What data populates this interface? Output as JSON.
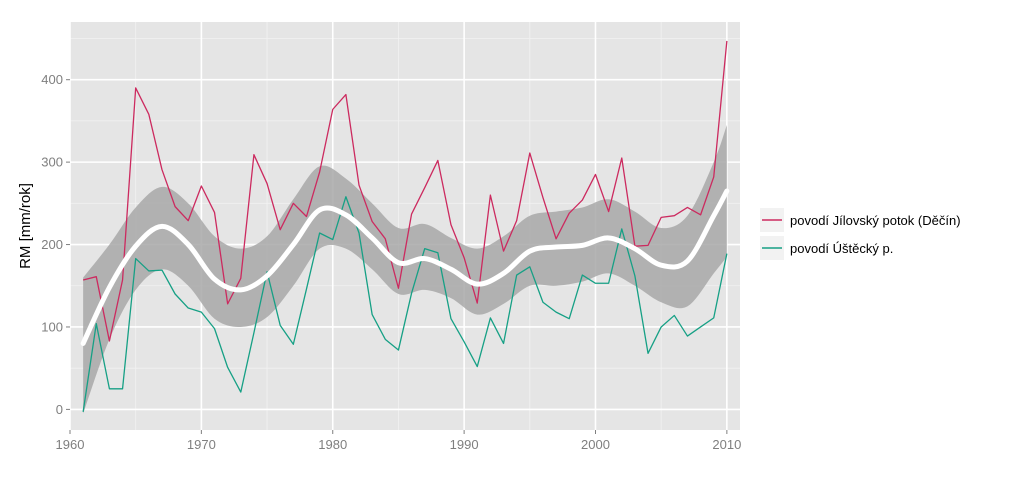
{
  "chart_data": {
    "type": "line",
    "xlabel": "",
    "ylabel": "RM [mm/rok]",
    "xlim": [
      1960,
      2011
    ],
    "ylim": [
      -25,
      470
    ],
    "x_ticks": [
      1960,
      1970,
      1980,
      1990,
      2000,
      2010
    ],
    "y_ticks": [
      0,
      100,
      200,
      300,
      400
    ],
    "x_tick_labels": [
      "1960",
      "1970",
      "1980",
      "1990",
      "2000",
      "2010"
    ],
    "y_tick_labels": [
      "0",
      "100",
      "200",
      "300",
      "400"
    ],
    "grid": true,
    "legend_position": "right",
    "x": [
      1961,
      1962,
      1963,
      1964,
      1965,
      1966,
      1967,
      1968,
      1969,
      1970,
      1971,
      1972,
      1973,
      1974,
      1975,
      1976,
      1977,
      1978,
      1979,
      1980,
      1981,
      1982,
      1983,
      1984,
      1985,
      1986,
      1987,
      1988,
      1989,
      1990,
      1991,
      1992,
      1993,
      1994,
      1995,
      1996,
      1997,
      1998,
      1999,
      2000,
      2001,
      2002,
      2003,
      2004,
      2005,
      2006,
      2007,
      2008,
      2009,
      2010
    ],
    "series": [
      {
        "name": "povodí Jílovský potok (Děčín)",
        "color": "#cc2a5f",
        "values": [
          157,
          161,
          83,
          157,
          390,
          358,
          291,
          246,
          229,
          271,
          239,
          128,
          159,
          309,
          274,
          218,
          250,
          234,
          288,
          364,
          382,
          272,
          228,
          207,
          147,
          237,
          269,
          302,
          224,
          184,
          129,
          260,
          192,
          229,
          311,
          257,
          207,
          238,
          254,
          285,
          240,
          305,
          198,
          199,
          233,
          235,
          245,
          236,
          282,
          447
        ]
      },
      {
        "name": "povodí Úštěcký p.",
        "color": "#16a085",
        "values": [
          -3,
          104,
          25,
          25,
          183,
          168,
          169,
          140,
          123,
          118,
          98,
          51,
          21,
          93,
          167,
          102,
          79,
          146,
          214,
          206,
          258,
          214,
          115,
          85,
          72,
          141,
          195,
          190,
          110,
          82,
          52,
          111,
          80,
          163,
          173,
          130,
          118,
          110,
          163,
          153,
          153,
          219,
          162,
          68,
          100,
          114,
          89,
          100,
          111,
          189
        ]
      }
    ],
    "smooth": {
      "color": "#ffffff",
      "band_color": "#a8a8a8",
      "x": [
        1961,
        1963,
        1965,
        1967,
        1969,
        1971,
        1973,
        1975,
        1977,
        1979,
        1981,
        1983,
        1985,
        1987,
        1989,
        1991,
        1993,
        1995,
        1997,
        1999,
        2001,
        2003,
        2005,
        2007,
        2009,
        2010
      ],
      "fit": [
        80,
        148,
        198,
        222,
        200,
        158,
        145,
        162,
        200,
        242,
        236,
        208,
        178,
        183,
        170,
        152,
        165,
        192,
        197,
        199,
        208,
        195,
        175,
        180,
        235,
        265
      ],
      "lower": [
        -5,
        85,
        145,
        170,
        150,
        110,
        100,
        112,
        150,
        195,
        195,
        170,
        140,
        145,
        135,
        115,
        128,
        150,
        150,
        155,
        165,
        150,
        130,
        125,
        165,
        185
      ],
      "upper": [
        160,
        200,
        245,
        270,
        250,
        210,
        195,
        210,
        255,
        295,
        280,
        250,
        220,
        225,
        208,
        195,
        210,
        235,
        240,
        245,
        255,
        240,
        220,
        235,
        300,
        345
      ]
    }
  }
}
